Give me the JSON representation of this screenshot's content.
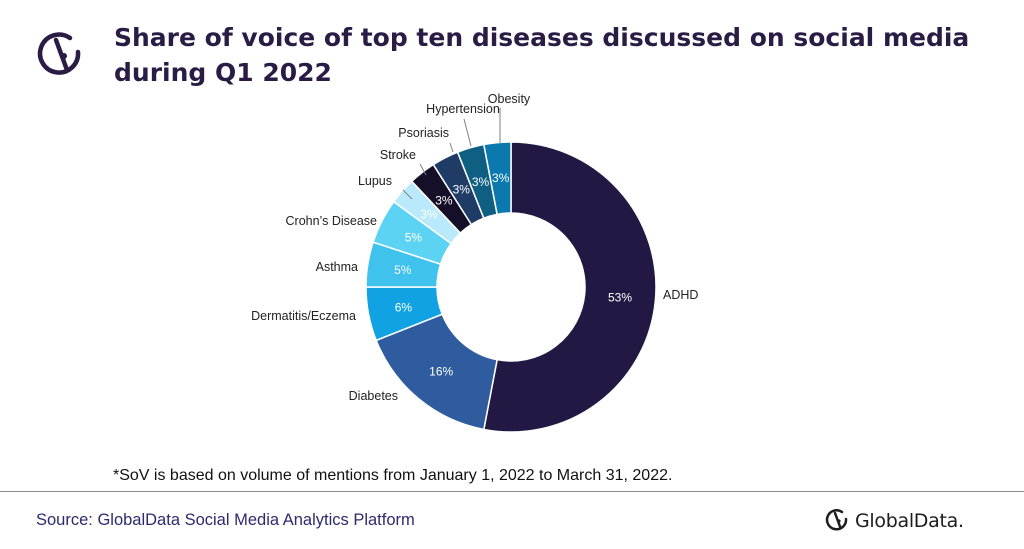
{
  "header": {
    "title_line1": "Share of voice of top ten diseases discussed on social media",
    "title_line2": "during Q1 2022"
  },
  "footer": {
    "footnote": "*SoV is based on volume of mentions from January 1, 2022 to March 31, 2022.",
    "source": "Source: GlobalData Social Media Analytics Platform",
    "brand_name": "GlobalData."
  },
  "icons": {
    "header_logo": "globaldata-logo-icon",
    "brand_logo": "globaldata-logo-icon"
  },
  "colors": {
    "title": "#2a1c45",
    "source_text": "#2e2a6e"
  },
  "chart_data": {
    "type": "pie",
    "style": "donut",
    "title": "Share of voice of top ten diseases discussed on social media during Q1 2022",
    "categories": [
      "ADHD",
      "Diabetes",
      "Dermatitis/Eczema",
      "Asthma",
      "Crohn’s Disease",
      "Lupus",
      "Stroke",
      "Psoriasis",
      "Hypertension",
      "Obesity"
    ],
    "values": [
      53,
      16,
      6,
      5,
      5,
      3,
      3,
      3,
      3,
      3
    ],
    "value_labels": [
      "53%",
      "16%",
      "6%",
      "5%",
      "5%",
      "3%",
      "3%",
      "3%",
      "3%",
      "3%"
    ],
    "colors": [
      "#231843",
      "#2f5c9e",
      "#10a2e3",
      "#3fc2ec",
      "#5dd3f3",
      "#b9e9fa",
      "#150f28",
      "#1f3c66",
      "#0f5f83",
      "#0b79ad"
    ],
    "legend": "none",
    "start_angle": "12 o'clock",
    "direction": "clockwise"
  }
}
